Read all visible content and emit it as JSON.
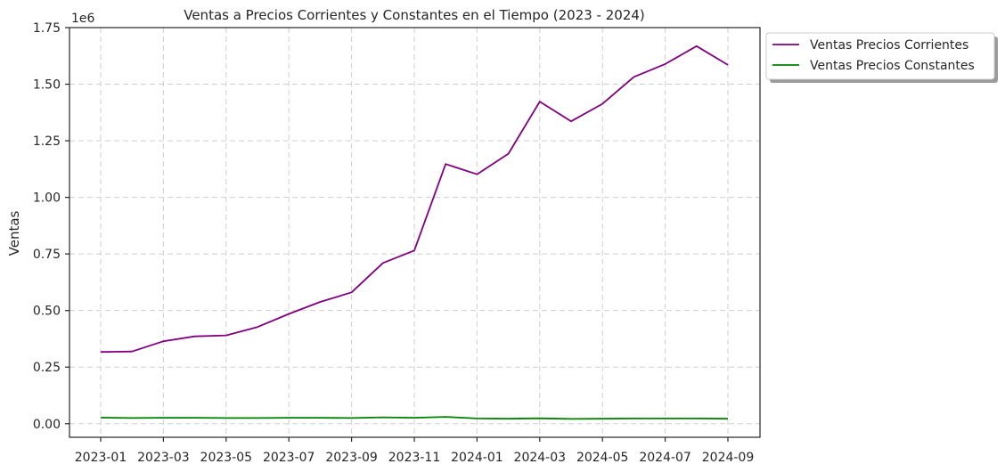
{
  "chart_data": {
    "type": "line",
    "title": "Ventas a Precios Corrientes y Constantes en el Tiempo (2023 - 2024)",
    "xlabel": "",
    "ylabel": "Ventas",
    "y_offset_label": "1e6",
    "y_multiplier": 1000000,
    "x": [
      "2023-01",
      "2023-02",
      "2023-03",
      "2023-04",
      "2023-05",
      "2023-06",
      "2023-07",
      "2023-08",
      "2023-09",
      "2023-10",
      "2023-11",
      "2023-12",
      "2024-01",
      "2024-02",
      "2024-03",
      "2024-04",
      "2024-05",
      "2024-06",
      "2024-07",
      "2024-08",
      "2024-09"
    ],
    "x_tick_labels": [
      "2023-01",
      "2023-03",
      "2023-05",
      "2023-07",
      "2023-09",
      "2023-11",
      "2024-01",
      "2024-03",
      "2024-05",
      "2024-07",
      "2024-09"
    ],
    "y_tick_labels": [
      "0.00",
      "0.25",
      "0.50",
      "0.75",
      "1.00",
      "1.25",
      "1.50",
      "1.75"
    ],
    "ylim": [
      -0.06,
      1.75
    ],
    "grid": true,
    "legend_position": "outside-top-right",
    "series": [
      {
        "name": "Ventas Precios Corrientes",
        "color": "#800080",
        "values": [
          0.317,
          0.319,
          0.364,
          0.386,
          0.39,
          0.427,
          0.485,
          0.538,
          0.58,
          0.71,
          0.765,
          1.147,
          1.102,
          1.193,
          1.423,
          1.336,
          1.413,
          1.532,
          1.589,
          1.668,
          1.585
        ]
      },
      {
        "name": "Ventas Precios Constantes",
        "color": "#008000",
        "values": [
          0.027,
          0.025,
          0.026,
          0.026,
          0.025,
          0.025,
          0.026,
          0.026,
          0.025,
          0.028,
          0.026,
          0.03,
          0.023,
          0.022,
          0.024,
          0.021,
          0.022,
          0.023,
          0.023,
          0.023,
          0.022
        ]
      }
    ]
  }
}
